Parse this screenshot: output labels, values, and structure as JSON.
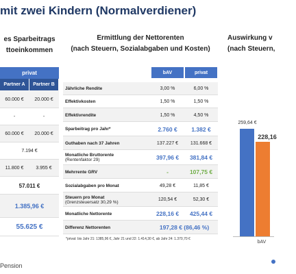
{
  "title": "mit zwei Kindern (Normalverdiener)",
  "left": {
    "heading": [
      "es Sparbeitrags",
      "ttoeinkommen"
    ],
    "group": "privat",
    "columns": [
      "Partner A",
      "Partner B"
    ],
    "rows": [
      [
        "60.000 €",
        "20.000 €"
      ],
      [
        "-",
        "-"
      ],
      [
        "60.000 €",
        "20.000 €"
      ],
      [
        "7.194 €"
      ],
      [
        "11.800 €",
        "3.955 €"
      ],
      [
        "57.011 €"
      ],
      [
        "1.385,96 €"
      ],
      [
        "55.625 €"
      ]
    ]
  },
  "middle": {
    "heading": [
      "Ermittlung der Nettorenten",
      "(nach Steuern, Sozialabgaben und Kosten)"
    ],
    "columns": [
      "bAV",
      "privat"
    ],
    "rows": [
      {
        "label": "Jährliche Rendite",
        "values": [
          "3,00 %",
          "6,00 %"
        ]
      },
      {
        "label": "Effektivkosten",
        "values": [
          "1,50 %",
          "1,50 %"
        ]
      },
      {
        "label": "Effektivrendite",
        "values": [
          "1,50 %",
          "4,50 %"
        ]
      },
      {
        "label": "Sparbeitrag pro Jahr*",
        "values": [
          "2.760 €",
          "1.382 €"
        ],
        "color": "#4472c4"
      },
      {
        "label": "Guthaben nach 37 Jahren",
        "values": [
          "137.227 €",
          "131.668 €"
        ]
      },
      {
        "label": "Monatliche Bruttorente",
        "sub": "(Rentenfaktor 29)",
        "values": [
          "397,96 €",
          "381,84 €"
        ],
        "color": "#4472c4"
      },
      {
        "label": "Mehrrente GRV",
        "values": [
          "-",
          "107,75 €"
        ],
        "color": "#70ad47"
      },
      {
        "label": "Sozialabgaben pro Monat",
        "values": [
          "49,28 €",
          "11,85 €"
        ]
      },
      {
        "label": "Steuern pro Monat",
        "sub": "(Grenzsteuersatz 30,29 %)",
        "values": [
          "120,54 €",
          "52,30 €"
        ]
      },
      {
        "label": "Monatliche Nettorente",
        "values": [
          "228,16 €",
          "425,44 €"
        ],
        "color": "#4472c4"
      },
      {
        "label": "Differenz Nettorenten",
        "values": [
          "197,28 € (86,46 %)"
        ],
        "color": "#4472c4"
      }
    ],
    "footnote": "*privat: bis Jahr 21: 1385,96 €, Jahr 21 und 22: 1.414,30 €, ab Jahr 24: 1.370,70 €"
  },
  "right": {
    "heading": [
      "Auswirkung v",
      "(nach Steuern,"
    ],
    "category": "bAV",
    "bars": [
      {
        "value": 259.64,
        "label": "259,64 €",
        "color": "#4472c4"
      },
      {
        "value": 228.16,
        "label": "228,16",
        "color": "#ed7d31"
      }
    ]
  },
  "footer": "Pension"
}
